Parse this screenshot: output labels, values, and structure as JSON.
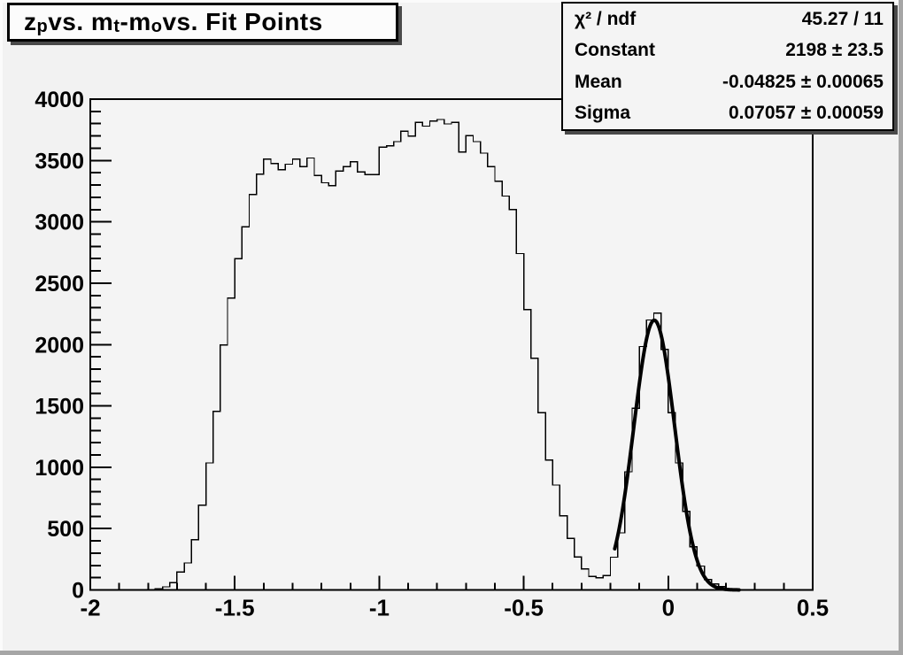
{
  "title": {
    "p1": "z",
    "s1": "p",
    "p2": " vs. m",
    "s2": "t",
    "p3": "-m",
    "s3": "o",
    "p4": " vs. Fit Points"
  },
  "stats": {
    "rows": [
      {
        "label": "χ² / ndf",
        "value": "45.27 / 11"
      },
      {
        "label": "Constant",
        "value": "2198 ± 23.5"
      },
      {
        "label": "Mean",
        "value": "-0.04825 ± 0.00065"
      },
      {
        "label": "Sigma",
        "value": "0.07057 ± 0.00059"
      }
    ]
  },
  "chart_data": {
    "type": "bar",
    "subtype": "histogram-with-gaussian-fit",
    "title": "z_p vs. m_t-m_o vs. Fit Points",
    "xlabel": "",
    "ylabel": "",
    "x_range": [
      -2.0,
      0.5
    ],
    "y_range": [
      0,
      4000
    ],
    "grid": false,
    "legend": false,
    "bin_start": -2.0,
    "bin_width": 0.025,
    "bins": [
      0,
      0,
      0,
      0,
      0,
      0,
      0,
      0,
      0,
      8,
      25,
      60,
      146,
      220,
      410,
      690,
      1035,
      1456,
      1996,
      2380,
      2700,
      2960,
      3222,
      3390,
      3510,
      3474,
      3426,
      3470,
      3510,
      3450,
      3520,
      3378,
      3318,
      3294,
      3414,
      3450,
      3490,
      3407,
      3385,
      3385,
      3610,
      3620,
      3654,
      3738,
      3700,
      3810,
      3780,
      3822,
      3834,
      3798,
      3810,
      3570,
      3702,
      3654,
      3560,
      3450,
      3330,
      3210,
      3100,
      2741,
      2285,
      1888,
      1444,
      1059,
      855,
      603,
      420,
      270,
      171,
      110,
      99,
      117,
      267,
      465,
      963,
      1480,
      1984,
      2200,
      2256,
      1960,
      1444,
      1035,
      639,
      351,
      195,
      86,
      50,
      27,
      10,
      0,
      0,
      0,
      0,
      0,
      0,
      0,
      0,
      0,
      0,
      0
    ],
    "x_ticks": [
      {
        "v": -2,
        "label": "-2"
      },
      {
        "v": -1.5,
        "label": "-1.5"
      },
      {
        "v": -1,
        "label": "-1"
      },
      {
        "v": -0.5,
        "label": "-0.5"
      },
      {
        "v": 0,
        "label": "0"
      },
      {
        "v": 0.5,
        "label": "0.5"
      }
    ],
    "y_ticks": [
      {
        "v": 0,
        "label": "0"
      },
      {
        "v": 500,
        "label": "500"
      },
      {
        "v": 1000,
        "label": "1000"
      },
      {
        "v": 1500,
        "label": "1500"
      },
      {
        "v": 2000,
        "label": "2000"
      },
      {
        "v": 2500,
        "label": "2500"
      },
      {
        "v": 3000,
        "label": "3000"
      },
      {
        "v": 3500,
        "label": "3500"
      },
      {
        "v": 4000,
        "label": "4000"
      }
    ],
    "x_minor_step": 0.1,
    "y_minor_step": 100,
    "fit": {
      "type": "gaussian",
      "constant": 2198,
      "mean": -0.04825,
      "sigma": 0.07057,
      "draw_range": [
        -0.185,
        0.245
      ]
    },
    "colors": {
      "histogram_line": "#000000",
      "fit_line": "#000000",
      "frame_background": "#f4f4f4",
      "canvas_background": "#f2f2f2",
      "axis": "#000000"
    }
  }
}
